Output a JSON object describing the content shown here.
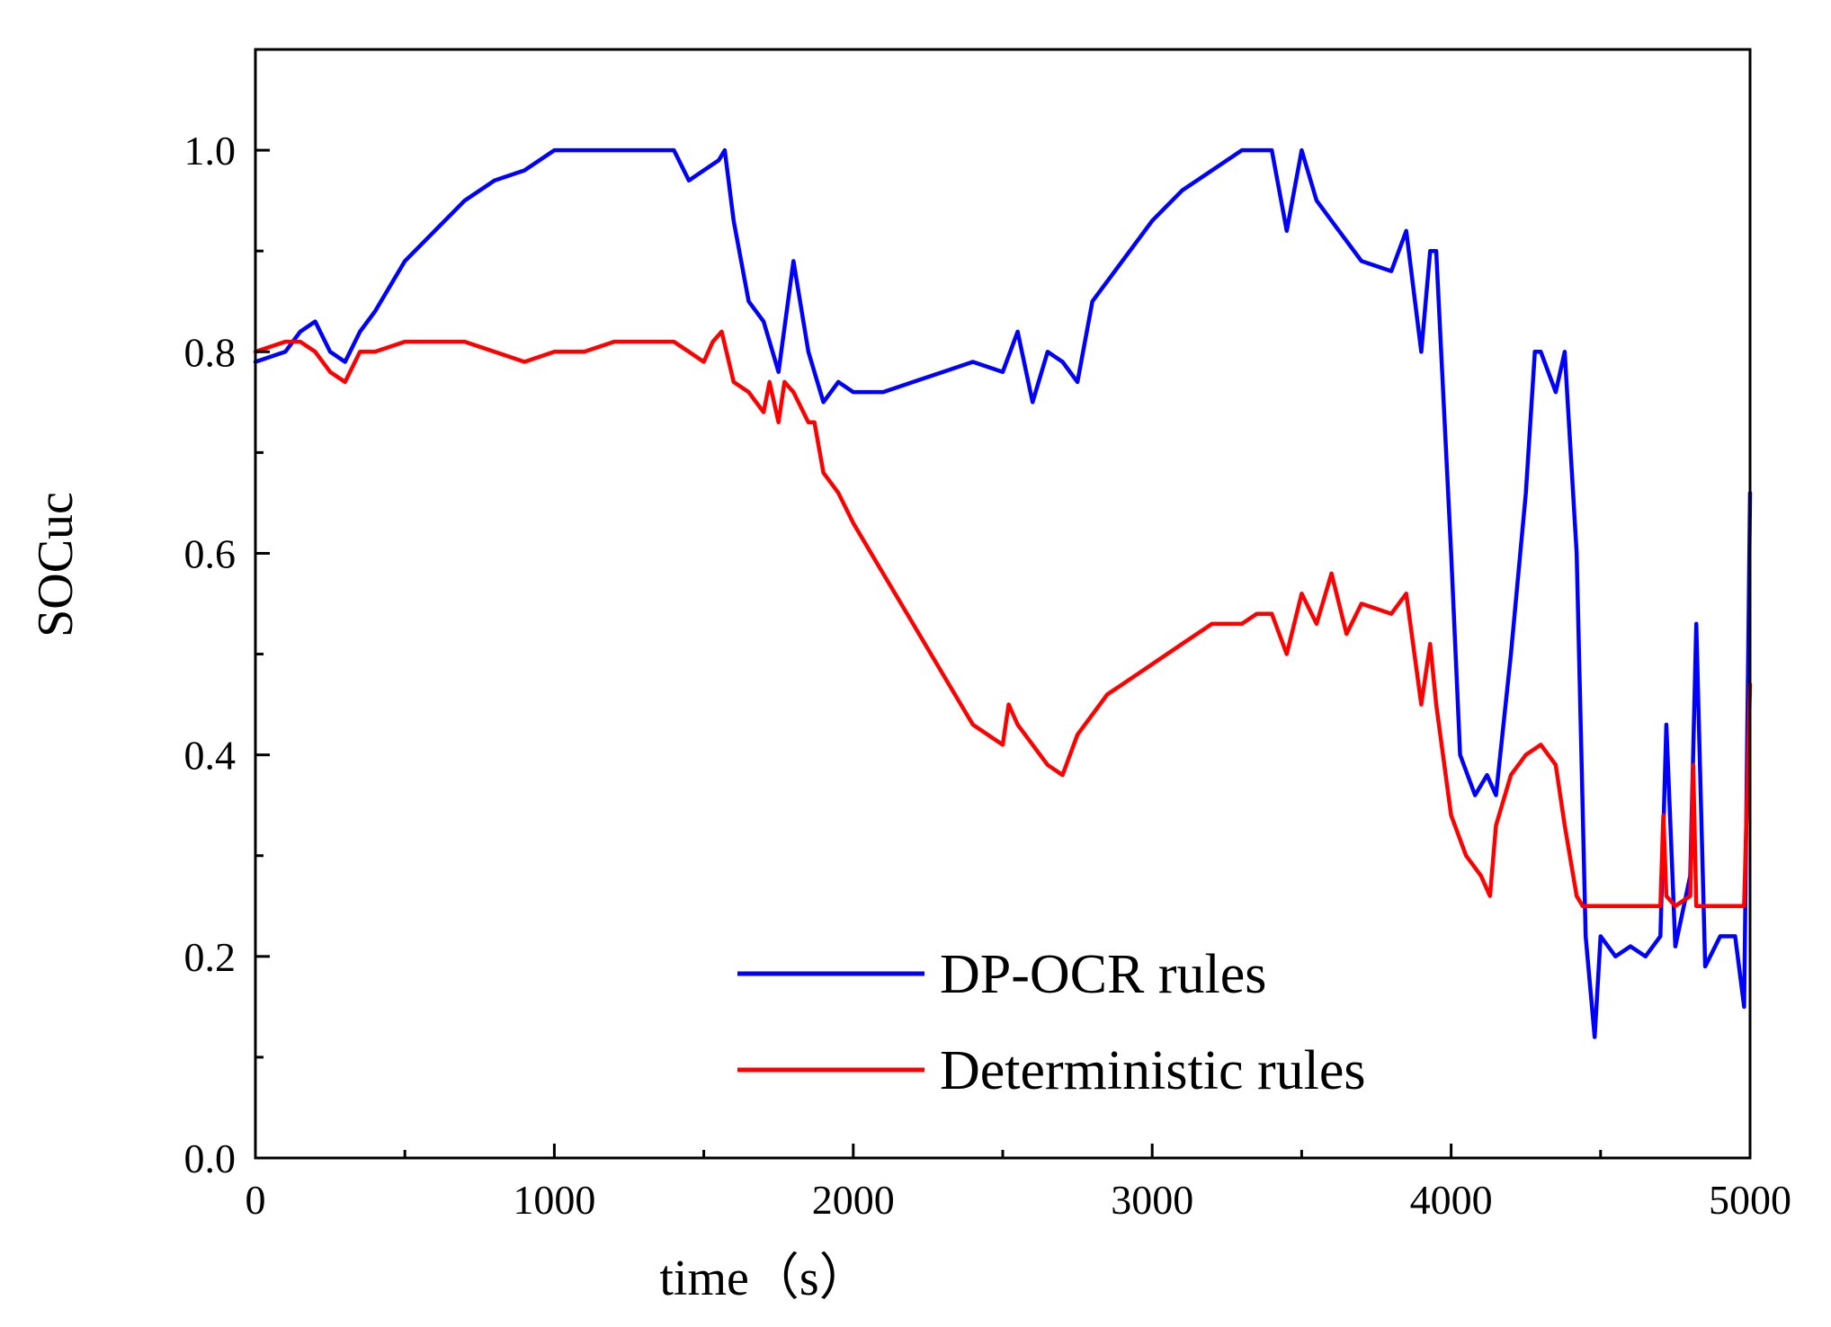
{
  "chart_data": {
    "type": "line",
    "title": "",
    "xlabel": "time（s）",
    "ylabel": "SOCuc",
    "xlim": [
      0,
      5000
    ],
    "ylim": [
      0,
      1.1
    ],
    "xticks": [
      0,
      1000,
      2000,
      3000,
      4000,
      5000
    ],
    "xtick_labels": [
      "0",
      "1000",
      "2000",
      "3000",
      "4000",
      "5000"
    ],
    "yticks": [
      0.0,
      0.2,
      0.4,
      0.6,
      0.8,
      1.0
    ],
    "ytick_labels": [
      "0.0",
      "0.2",
      "0.4",
      "0.6",
      "0.8",
      "1.0"
    ],
    "grid": false,
    "legend_position": "bottom-right",
    "series": [
      {
        "name": "DP-OCR rules",
        "color": "#0000ff",
        "x": [
          0,
          100,
          150,
          200,
          250,
          300,
          350,
          400,
          500,
          600,
          700,
          800,
          900,
          1000,
          1200,
          1400,
          1450,
          1500,
          1550,
          1570,
          1600,
          1650,
          1700,
          1750,
          1800,
          1850,
          1900,
          1950,
          2000,
          2100,
          2200,
          2300,
          2400,
          2500,
          2550,
          2600,
          2650,
          2700,
          2750,
          2800,
          2900,
          3000,
          3100,
          3200,
          3300,
          3400,
          3450,
          3500,
          3550,
          3600,
          3700,
          3800,
          3850,
          3900,
          3930,
          3950,
          4000,
          4030,
          4080,
          4120,
          4150,
          4200,
          4250,
          4280,
          4300,
          4350,
          4380,
          4420,
          4450,
          4480,
          4500,
          4550,
          4600,
          4650,
          4700,
          4720,
          4750,
          4800,
          4820,
          4850,
          4900,
          4950,
          4980,
          5000
        ],
        "values": [
          0.79,
          0.8,
          0.82,
          0.83,
          0.8,
          0.79,
          0.82,
          0.84,
          0.89,
          0.92,
          0.95,
          0.97,
          0.98,
          1.0,
          1.0,
          1.0,
          0.97,
          0.98,
          0.99,
          1.0,
          0.93,
          0.85,
          0.83,
          0.78,
          0.89,
          0.8,
          0.75,
          0.77,
          0.76,
          0.76,
          0.77,
          0.78,
          0.79,
          0.78,
          0.82,
          0.75,
          0.8,
          0.79,
          0.77,
          0.85,
          0.89,
          0.93,
          0.96,
          0.98,
          1.0,
          1.0,
          0.92,
          1.0,
          0.95,
          0.93,
          0.89,
          0.88,
          0.92,
          0.8,
          0.9,
          0.9,
          0.6,
          0.4,
          0.36,
          0.38,
          0.36,
          0.5,
          0.66,
          0.8,
          0.8,
          0.76,
          0.8,
          0.6,
          0.22,
          0.12,
          0.22,
          0.2,
          0.21,
          0.2,
          0.22,
          0.43,
          0.21,
          0.28,
          0.53,
          0.19,
          0.22,
          0.22,
          0.15,
          0.66
        ]
      },
      {
        "name": "Deterministic rules",
        "color": "#ff0000",
        "x": [
          0,
          100,
          150,
          200,
          250,
          300,
          350,
          400,
          500,
          600,
          700,
          800,
          900,
          1000,
          1100,
          1200,
          1300,
          1400,
          1450,
          1500,
          1530,
          1560,
          1600,
          1650,
          1700,
          1720,
          1750,
          1770,
          1800,
          1850,
          1870,
          1900,
          1950,
          2000,
          2100,
          2200,
          2300,
          2400,
          2450,
          2500,
          2520,
          2550,
          2600,
          2650,
          2700,
          2750,
          2800,
          2850,
          2900,
          3000,
          3100,
          3200,
          3300,
          3350,
          3400,
          3450,
          3500,
          3550,
          3600,
          3650,
          3700,
          3800,
          3850,
          3900,
          3930,
          3950,
          4000,
          4050,
          4100,
          4130,
          4150,
          4200,
          4250,
          4300,
          4350,
          4380,
          4420,
          4440,
          4450,
          4500,
          4550,
          4600,
          4650,
          4700,
          4710,
          4720,
          4750,
          4800,
          4810,
          4820,
          4850,
          4900,
          4950,
          4980,
          5000
        ],
        "values": [
          0.8,
          0.81,
          0.81,
          0.8,
          0.78,
          0.77,
          0.8,
          0.8,
          0.81,
          0.81,
          0.81,
          0.8,
          0.79,
          0.8,
          0.8,
          0.81,
          0.81,
          0.81,
          0.8,
          0.79,
          0.81,
          0.82,
          0.77,
          0.76,
          0.74,
          0.77,
          0.73,
          0.77,
          0.76,
          0.73,
          0.73,
          0.68,
          0.66,
          0.63,
          0.58,
          0.53,
          0.48,
          0.43,
          0.42,
          0.41,
          0.45,
          0.43,
          0.41,
          0.39,
          0.38,
          0.42,
          0.44,
          0.46,
          0.47,
          0.49,
          0.51,
          0.53,
          0.53,
          0.54,
          0.54,
          0.5,
          0.56,
          0.53,
          0.58,
          0.52,
          0.55,
          0.54,
          0.56,
          0.45,
          0.51,
          0.45,
          0.34,
          0.3,
          0.28,
          0.26,
          0.33,
          0.38,
          0.4,
          0.41,
          0.39,
          0.33,
          0.26,
          0.25,
          0.25,
          0.25,
          0.25,
          0.25,
          0.25,
          0.25,
          0.34,
          0.26,
          0.25,
          0.26,
          0.39,
          0.25,
          0.25,
          0.25,
          0.25,
          0.25,
          0.47
        ]
      }
    ]
  }
}
